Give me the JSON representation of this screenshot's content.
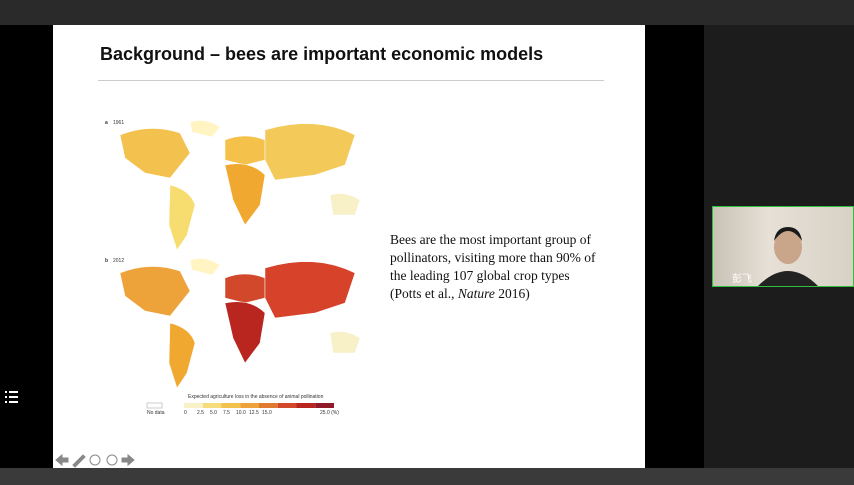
{
  "slide": {
    "title": "Background – bees are important economic models",
    "body_lines": [
      "Bees are the most important group of",
      "pollinators, visiting more than 90% of",
      "the leading 107 global crop types"
    ],
    "citation": [
      "(Potts et al., ",
      "Nature",
      " 2016)"
    ],
    "maps": [
      {
        "letter": "a",
        "year": "1961"
      },
      {
        "letter": "b",
        "year": "2012"
      }
    ],
    "legend": {
      "title": "Expected agriculture loss in the absence of animal pollination",
      "no_data": "No data",
      "ticks": [
        "0",
        "2.5",
        "5.0",
        "7.5",
        "10.0",
        "12.5",
        "15.0",
        "25.0 (%)"
      ]
    }
  },
  "participant": {
    "name": "彭飞"
  }
}
